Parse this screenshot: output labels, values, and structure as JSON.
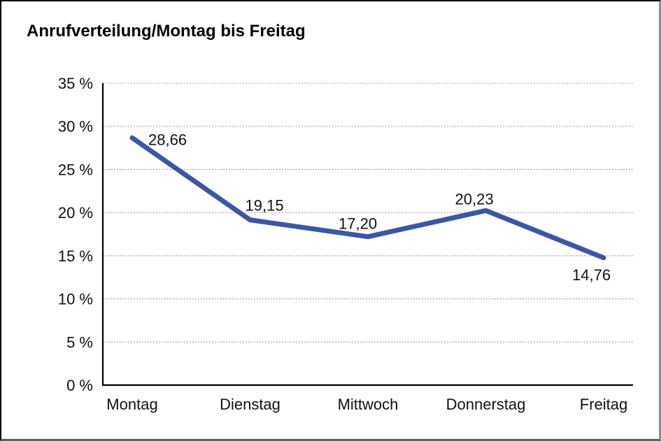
{
  "chart_data": {
    "type": "line",
    "title": "Anrufverteilung/Montag bis Freitag",
    "categories": [
      "Montag",
      "Dienstag",
      "Mittwoch",
      "Donnerstag",
      "Freitag"
    ],
    "values": [
      28.66,
      19.15,
      17.2,
      20.23,
      14.76
    ],
    "data_labels": [
      "28,66",
      "19,15",
      "17,20",
      "20,23",
      "14,76"
    ],
    "y_ticks": [
      "35 %",
      "30 %",
      "25 %",
      "20 %",
      "15 %",
      "10 %",
      "5 %",
      "0 %"
    ],
    "ylim": [
      0,
      35
    ],
    "y_tick_step": 5,
    "xlabel": "",
    "ylabel": "",
    "grid": "horizontal-dotted",
    "legend": "none",
    "line_color": "#3B56A5"
  }
}
